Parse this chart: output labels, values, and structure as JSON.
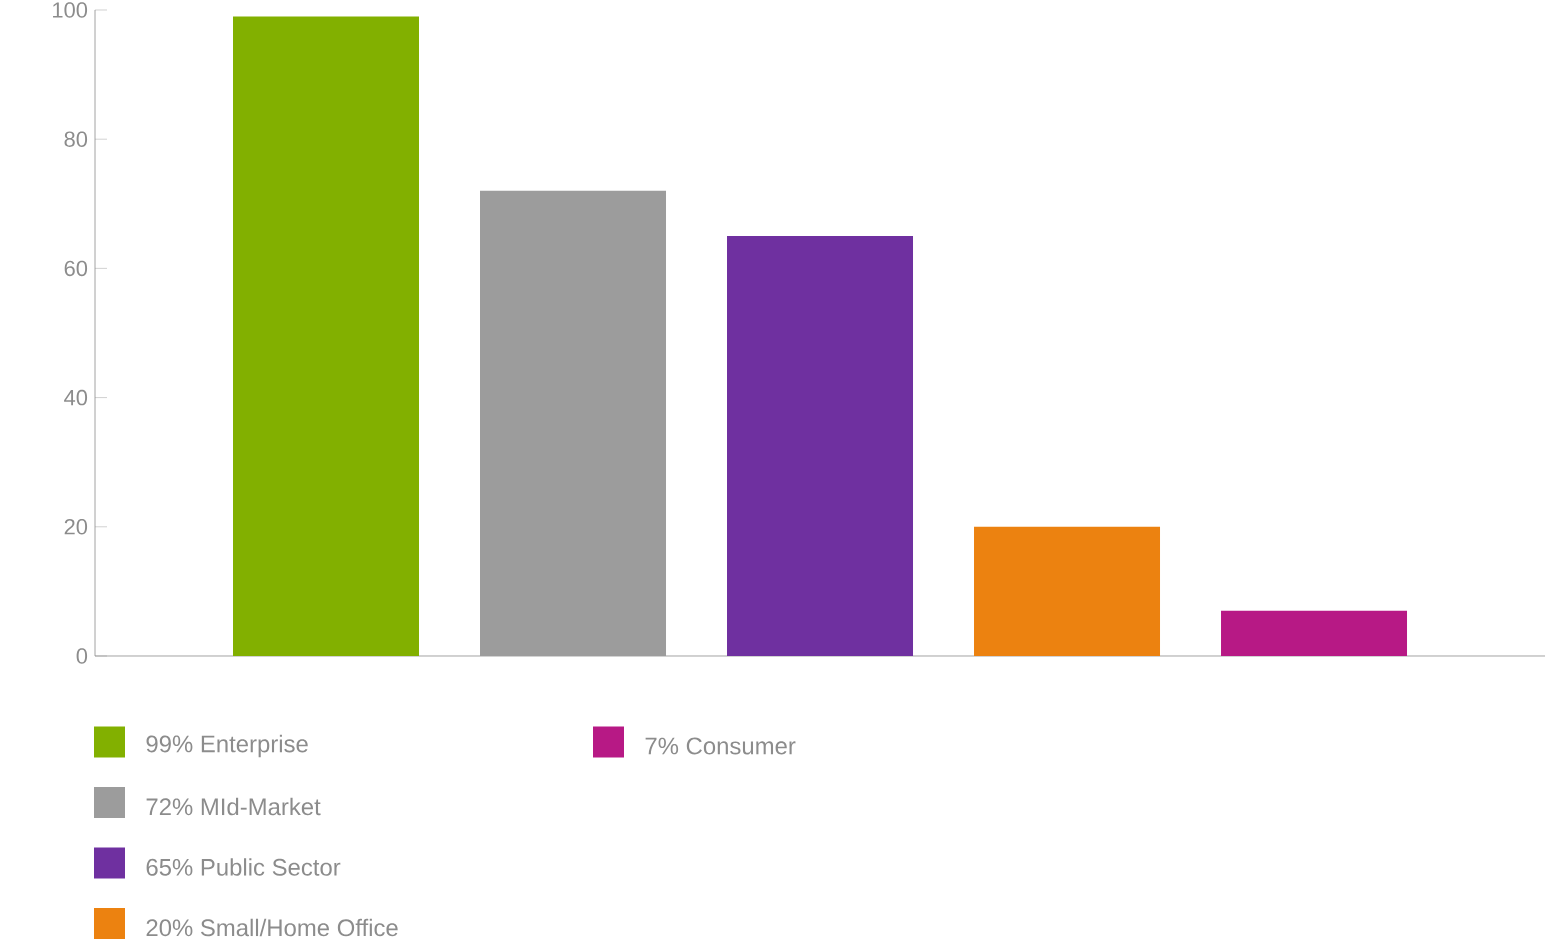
{
  "chart_data": {
    "type": "bar",
    "categories": [
      null,
      null,
      null,
      null,
      null
    ],
    "series": [
      {
        "name": "99% Enterprise",
        "color": "#82b000",
        "values": [
          99,
          null,
          null,
          null,
          null
        ]
      },
      {
        "name": "72% MId-Market",
        "color": "#9c9c9c",
        "values": [
          null,
          72,
          null,
          null,
          null
        ]
      },
      {
        "name": "65% Public Sector",
        "color": "#6f30a0",
        "values": [
          null,
          null,
          65,
          null,
          null
        ]
      },
      {
        "name": "20% Small/Home Office",
        "color": "#ec8210",
        "values": [
          null,
          null,
          null,
          20,
          null
        ]
      },
      {
        "name": "7% Consumer",
        "color": "#b71985",
        "values": [
          null,
          null,
          null,
          null,
          7
        ]
      }
    ],
    "ylim": [
      0,
      100
    ],
    "yticks": [
      0,
      20,
      40,
      60,
      80,
      100
    ],
    "legend": "bottom left"
  }
}
